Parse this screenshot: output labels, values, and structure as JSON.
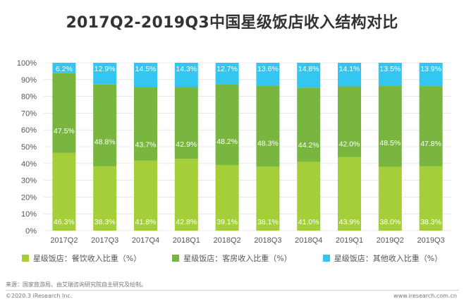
{
  "colors": {
    "series1": "#a5cf38",
    "series2": "#78b640",
    "series3": "#33c6f0",
    "axis_text": "#555555",
    "grid": "#d9d9d9"
  },
  "chart_data": {
    "type": "bar",
    "stacked": true,
    "title": "2017Q2-2019Q3中国星级饭店收入结构对比",
    "categories": [
      "2017Q2",
      "2017Q3",
      "2017Q4",
      "2018Q1",
      "2018Q2",
      "2018Q3",
      "2018Q4",
      "2019Q1",
      "2019Q2",
      "2019Q3"
    ],
    "series": [
      {
        "name": "星级饭店：餐饮收入比重（%）",
        "values": [
          46.3,
          38.3,
          41.8,
          42.8,
          39.1,
          38.1,
          41.0,
          43.9,
          38.0,
          38.3
        ]
      },
      {
        "name": "星级饭店：客房收入比重（%）",
        "values": [
          47.5,
          48.8,
          43.7,
          42.9,
          48.2,
          48.3,
          44.2,
          42.0,
          48.5,
          47.8
        ]
      },
      {
        "name": "星级饭店：其他收入比重（%）",
        "values": [
          6.2,
          12.9,
          14.5,
          14.3,
          12.7,
          13.6,
          14.8,
          14.1,
          13.5,
          13.9
        ]
      }
    ],
    "y_ticks": [
      "0%",
      "10%",
      "20%",
      "30%",
      "40%",
      "50%",
      "60%",
      "70%",
      "80%",
      "90%",
      "100%"
    ],
    "ylim": [
      0,
      100
    ],
    "grid": true,
    "legend_position": "bottom"
  },
  "footer": {
    "source": "来源：国家旅游局、由艾瑞咨询研究院自主研究及绘制。",
    "copyright": "©2020.3 iResearch Inc.",
    "website": "www.iresearch.com.cn"
  }
}
